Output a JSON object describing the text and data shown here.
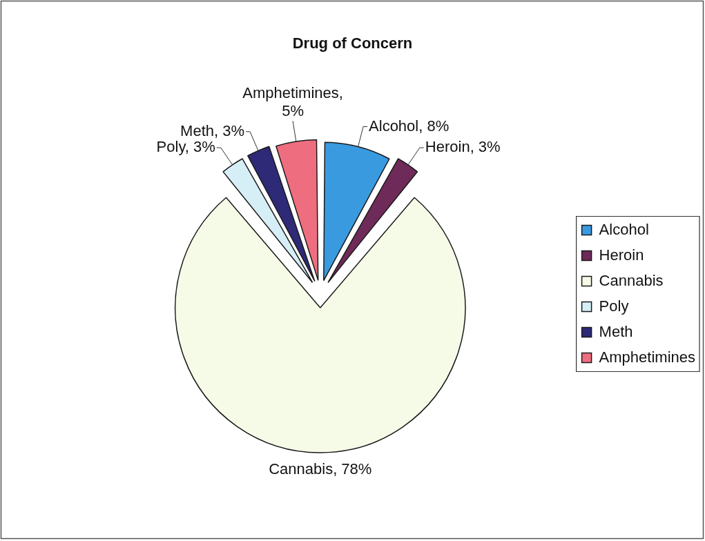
{
  "chart_data": {
    "type": "pie",
    "title": "Drug of Concern",
    "categories": [
      "Alcohol",
      "Heroin",
      "Cannabis",
      "Poly",
      "Meth",
      "Amphetimines"
    ],
    "values": [
      8,
      3,
      78,
      3,
      3,
      5
    ],
    "colors": [
      "#3a9ae0",
      "#6e2a58",
      "#f6fbe8",
      "#d6eef6",
      "#2e2a78",
      "#ee6e80"
    ],
    "value_labels": [
      "Alcohol, 8%",
      "Heroin, 3%",
      "Cannabis, 78%",
      "Poly, 3%",
      "Meth, 3%",
      "Amphetimines, 5%"
    ],
    "legend": "right"
  }
}
